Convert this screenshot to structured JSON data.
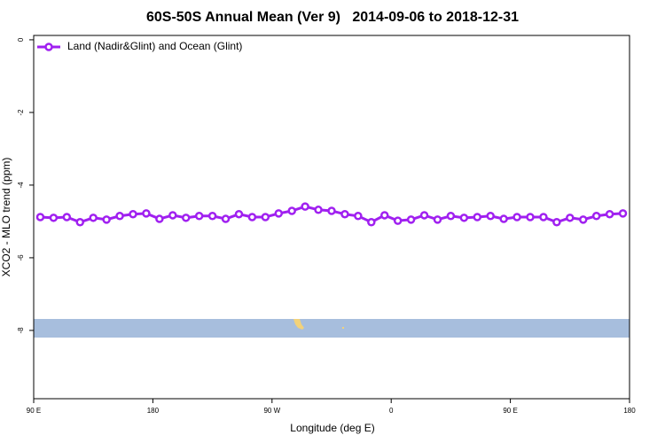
{
  "chart_data": {
    "type": "line",
    "title": "60S-50S Annual Mean (Ver 9)   2014-09-06 to 2018-12-31",
    "x_label": "Longitude (deg E)",
    "y_label": "XCO2 - MLO trend (ppm)",
    "x": [
      95,
      105,
      115,
      125,
      135,
      145,
      155,
      165,
      175,
      185,
      195,
      205,
      215,
      225,
      235,
      245,
      255,
      265,
      275,
      285,
      295,
      305,
      315,
      325,
      335,
      345,
      355,
      365,
      375,
      385,
      395,
      405,
      415,
      425,
      435,
      445,
      455,
      465,
      475,
      485,
      495,
      505,
      515,
      525,
      535
    ],
    "series": [
      {
        "name": "Land (Nadir&Glint) and Ocean (Glint)",
        "color": "#a020f0",
        "values": [
          -4.88,
          -4.9,
          -4.88,
          -5.02,
          -4.9,
          -4.95,
          -4.85,
          -4.8,
          -4.78,
          -4.93,
          -4.83,
          -4.9,
          -4.85,
          -4.85,
          -4.93,
          -4.8,
          -4.88,
          -4.88,
          -4.78,
          -4.71,
          -4.59,
          -4.68,
          -4.71,
          -4.8,
          -4.85,
          -5.02,
          -4.83,
          -4.98,
          -4.95,
          -4.83,
          -4.95,
          -4.85,
          -4.9,
          -4.88,
          -4.85,
          -4.93,
          -4.88,
          -4.88,
          -4.88,
          -5.02,
          -4.9,
          -4.95,
          -4.85,
          -4.8,
          -4.78
        ]
      }
    ],
    "xlim": [
      90,
      540
    ],
    "xticks": [
      {
        "value": 90,
        "label": "90 E"
      },
      180,
      {
        "value": 270,
        "label": "90 W"
      },
      {
        "value": 360,
        "label": "0"
      },
      {
        "value": 450,
        "label": "90 E"
      },
      {
        "value": 540,
        "label": "180"
      }
    ],
    "ylim": [
      -9.88,
      0.12
    ],
    "yticks": [
      0,
      -2,
      -4,
      -6,
      -8
    ],
    "legend": "top-left",
    "grid": false
  }
}
